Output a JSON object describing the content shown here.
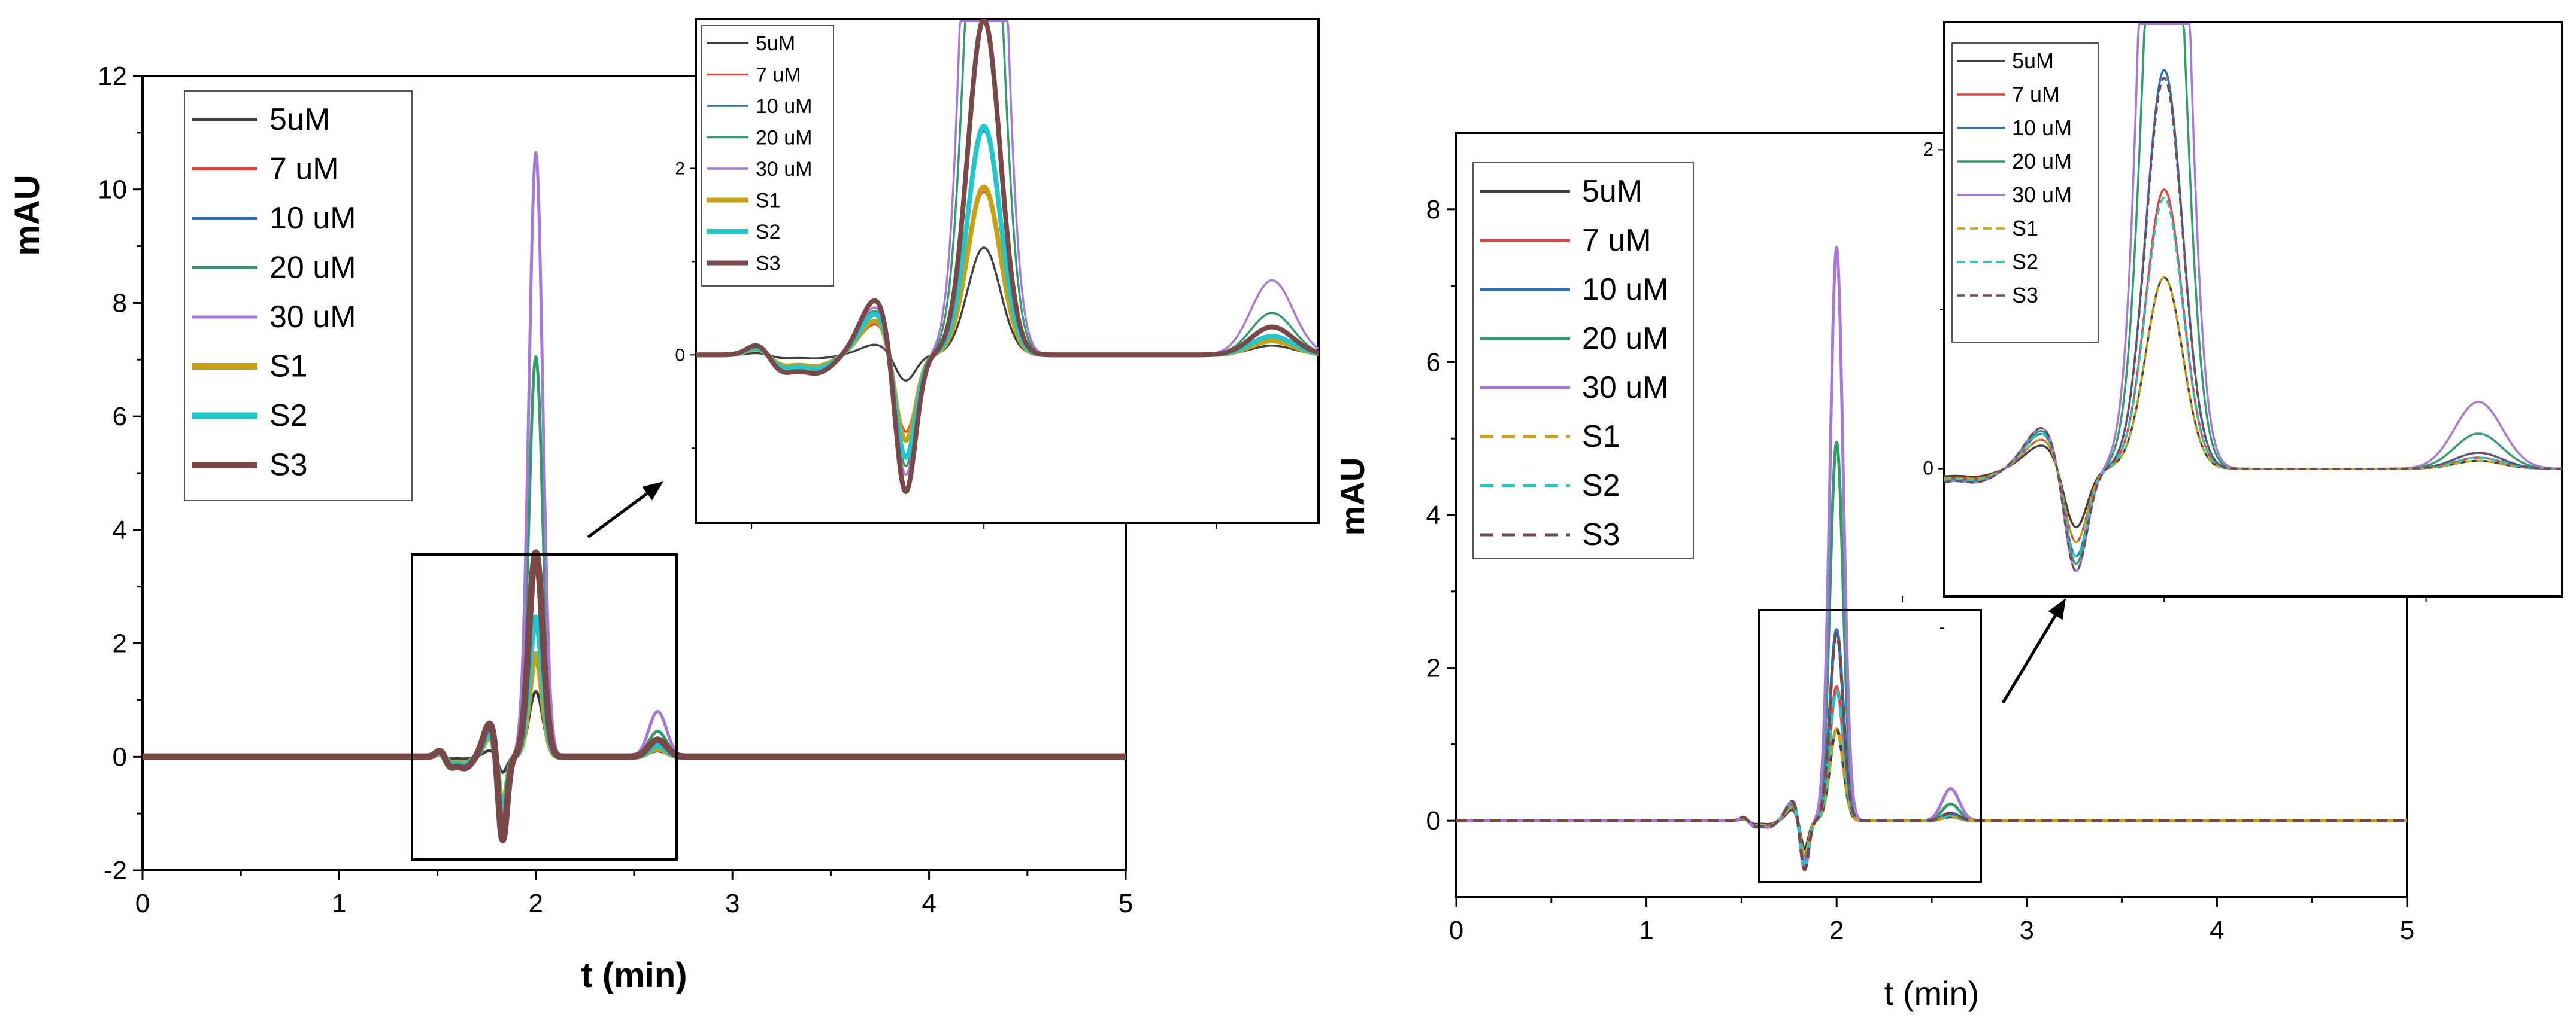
{
  "colors": {
    "c_5uM": "#404040",
    "c_7uM": "#e8403a",
    "c_10uM": "#2f6fbe",
    "c_20uM": "#2e9e6a",
    "c_30uM": "#a877db",
    "c_S1": "#c9a012",
    "c_S2": "#1fc8cc",
    "c_S3": "#7a4848"
  },
  "chart_data": [
    {
      "type": "line",
      "panel": "left",
      "title": "",
      "xlabel": "t (min)",
      "ylabel": "mAU",
      "xlim": [
        0,
        5
      ],
      "ylim": [
        -2,
        12
      ],
      "xticks": [
        "0",
        "1",
        "2",
        "3",
        "4",
        "5"
      ],
      "yticks": [
        "-2",
        "0",
        "2",
        "4",
        "6",
        "8",
        "10",
        "12"
      ],
      "legend_position": "top-left",
      "series": [
        {
          "name": "5uM",
          "peak": 1.15,
          "dip": -0.3,
          "style": "solid"
        },
        {
          "name": "7 uM",
          "peak": 1.75,
          "dip": -0.9,
          "style": "solid"
        },
        {
          "name": "10 uM",
          "peak": 2.4,
          "dip": -1.2,
          "style": "solid"
        },
        {
          "name": "20 uM",
          "peak": 7.05,
          "dip": -1.3,
          "style": "solid"
        },
        {
          "name": "30 uM",
          "peak": 10.65,
          "dip": -1.4,
          "style": "solid"
        },
        {
          "name": "S1",
          "peak": 1.8,
          "dip": -1.0,
          "style": "solid"
        },
        {
          "name": "S2",
          "peak": 2.45,
          "dip": -1.2,
          "style": "solid"
        },
        {
          "name": "S3",
          "peak": 3.6,
          "dip": -1.6,
          "style": "solid"
        }
      ],
      "secondary_peak": {
        "x": 2.62,
        "values": [
          0.1,
          0.15,
          0.2,
          0.45,
          0.8,
          0.15,
          0.2,
          0.3
        ]
      },
      "inset": {
        "ytick_labels": [
          "0",
          "2"
        ],
        "zoom_x_range": [
          1.38,
          2.72
        ],
        "zoom_y_range": [
          -1.8,
          3.6
        ]
      }
    },
    {
      "type": "line",
      "panel": "right",
      "title": "",
      "xlabel": "t (min)",
      "ylabel": "mAU",
      "xlim": [
        0,
        5
      ],
      "ylim": [
        -1,
        9
      ],
      "xticks": [
        "0",
        "1",
        "2",
        "3",
        "4",
        "5"
      ],
      "yticks": [
        "0",
        "2",
        "4",
        "6",
        "8"
      ],
      "legend_position": "top-left",
      "series": [
        {
          "name": "5uM",
          "peak": 1.2,
          "dip": -0.4,
          "style": "solid"
        },
        {
          "name": "7 uM",
          "peak": 1.75,
          "dip": -0.5,
          "style": "solid"
        },
        {
          "name": "10 uM",
          "peak": 2.5,
          "dip": -0.6,
          "style": "solid"
        },
        {
          "name": "20 uM",
          "peak": 4.95,
          "dip": -0.65,
          "style": "solid"
        },
        {
          "name": "30 uM",
          "peak": 7.5,
          "dip": -0.7,
          "style": "solid"
        },
        {
          "name": "S1",
          "peak": 1.2,
          "dip": -0.5,
          "style": "dashed"
        },
        {
          "name": "S2",
          "peak": 1.7,
          "dip": -0.6,
          "style": "dashed"
        },
        {
          "name": "S3",
          "peak": 2.45,
          "dip": -0.7,
          "style": "dashed"
        }
      ],
      "secondary_peak": {
        "x": 2.6,
        "values": [
          0.05,
          0.07,
          0.1,
          0.22,
          0.42,
          0.05,
          0.07,
          0.1
        ]
      },
      "inset": {
        "ytick_labels": [
          "0",
          "2"
        ],
        "zoom_x_range": [
          1.58,
          2.76
        ],
        "zoom_y_range": [
          -0.8,
          2.8
        ]
      }
    }
  ]
}
